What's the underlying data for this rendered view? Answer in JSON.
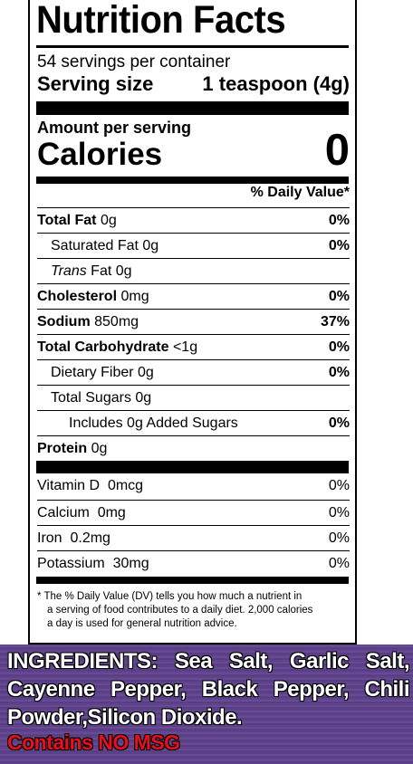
{
  "label": {
    "title": "Nutrition Facts",
    "servings": "54 servings per container",
    "serving_size_label": "Serving size",
    "serving_size_value": "1 teaspoon (4g)",
    "amount_per_serving": "Amount per serving",
    "calories_label": "Calories",
    "calories_value": "0",
    "dv_header": "% Daily Value*",
    "nutrients": [
      {
        "name": "Total Fat",
        "amount": "0g",
        "dv": "0%"
      },
      {
        "name": "Saturated Fat",
        "amount": "0g",
        "dv": "0%"
      },
      {
        "name_italic": "Trans",
        "name": "Fat",
        "amount": "0g",
        "dv": ""
      },
      {
        "name": "Cholesterol",
        "amount": "0mg",
        "dv": "0%"
      },
      {
        "name": "Sodium",
        "amount": "850mg",
        "dv": "37%"
      },
      {
        "name": "Total Carbohydrate",
        "amount": "<1g",
        "dv": "0%"
      },
      {
        "name": "Dietary Fiber",
        "amount": "0g",
        "dv": "0%"
      },
      {
        "name": "Total Sugars",
        "amount": "0g",
        "dv": ""
      },
      {
        "name": "Includes 0g Added Sugars",
        "amount": "",
        "dv": "0%"
      },
      {
        "name": "Protein",
        "amount": "0g",
        "dv": ""
      }
    ],
    "vitamins": [
      {
        "name": "Vitamin D",
        "amount": "0mcg",
        "dv": "0%"
      },
      {
        "name": "Calcium",
        "amount": "0mg",
        "dv": "0%"
      },
      {
        "name": "Iron",
        "amount": "0.2mg",
        "dv": "0%"
      },
      {
        "name": "Potassium",
        "amount": "30mg",
        "dv": "0%"
      }
    ],
    "footnote_line1": "* The % Daily Value (DV) tells you how much a nutrient in",
    "footnote_line2": "a serving of food contributes to a daily diet. 2,000 calories",
    "footnote_line3": "a day is used for general nutrition advice."
  },
  "ingredients": {
    "heading": "INGREDIENTS:",
    "text": "Sea Salt, Garlic Salt, Cayenne Pepper, Black Pepper, Chili Powder,Silicon Dioxide.",
    "msg_notice": "Contains NO MSG"
  },
  "colors": {
    "ingredients_bg": "#5a3f86",
    "msg_red": "#e8101c"
  }
}
